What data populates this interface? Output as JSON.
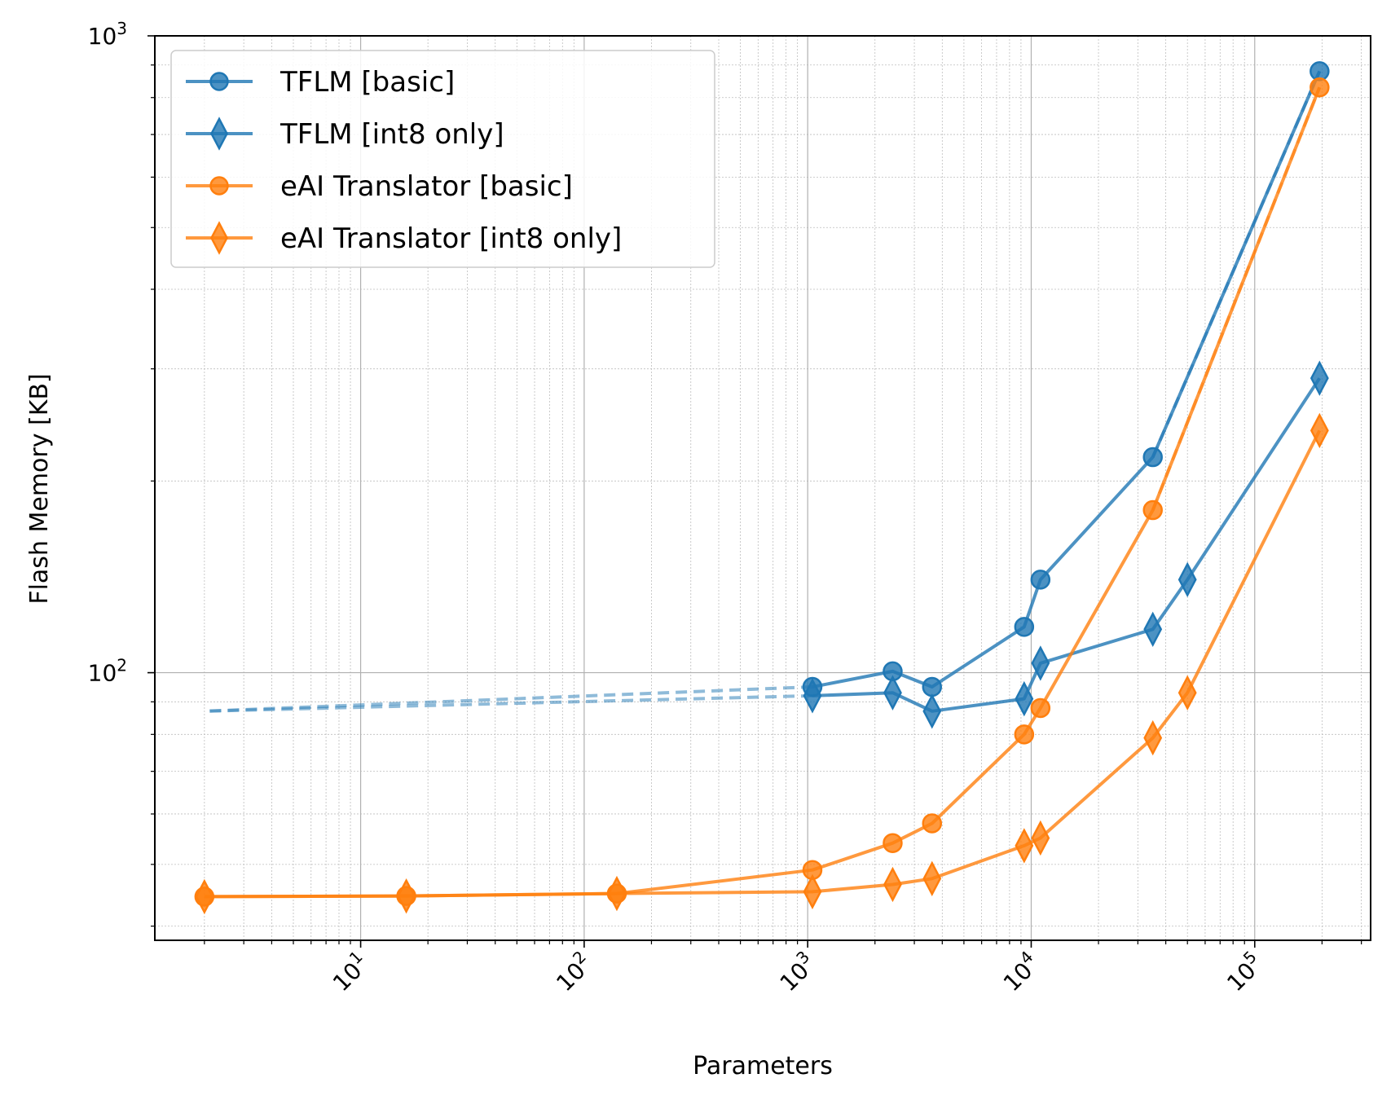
{
  "chart_data": {
    "type": "line",
    "xscale": "log",
    "yscale": "log",
    "xlabel": "Parameters",
    "ylabel": "Flash Memory [KB]",
    "xlim": [
      1.2,
      330000
    ],
    "ylim": [
      38,
      1000
    ],
    "xticks": [
      {
        "value": 10,
        "base": "10",
        "exp": "1"
      },
      {
        "value": 100,
        "base": "10",
        "exp": "2"
      },
      {
        "value": 1000,
        "base": "10",
        "exp": "3"
      },
      {
        "value": 10000,
        "base": "10",
        "exp": "4"
      },
      {
        "value": 100000,
        "base": "10",
        "exp": "5"
      }
    ],
    "yticks": [
      {
        "value": 100,
        "base": "10",
        "exp": "2"
      },
      {
        "value": 1000,
        "base": "10",
        "exp": "3"
      }
    ],
    "grid": true,
    "legend_position": "top-left",
    "series": [
      {
        "name": "TFLM [basic]",
        "color": "#1f77b4",
        "marker": "circle",
        "points": [
          [
            1050,
            95
          ],
          [
            2400,
            100.5
          ],
          [
            3600,
            95
          ],
          [
            9300,
            118
          ],
          [
            11000,
            140
          ],
          [
            35000,
            218
          ],
          [
            195000,
            880
          ]
        ],
        "dashed": [
          [
            [
              1050,
              95
            ],
            [
              2,
              87
            ]
          ],
          [
            [
              35000,
              218
            ],
            [
              195000,
              880
            ]
          ]
        ]
      },
      {
        "name": "TFLM [int8 only]",
        "color": "#1f77b4",
        "marker": "diamond",
        "points": [
          [
            1050,
            92
          ],
          [
            2400,
            93
          ],
          [
            3600,
            87
          ],
          [
            9300,
            91
          ],
          [
            11000,
            103.5
          ],
          [
            35000,
            117
          ],
          [
            50000,
            140
          ],
          [
            195000,
            290
          ]
        ],
        "dashed": [
          [
            [
              1050,
              92
            ],
            [
              2,
              87
            ]
          ]
        ]
      },
      {
        "name": "eAI Translator [basic]",
        "color": "#ff7f0e",
        "marker": "circle",
        "points": [
          [
            2,
            44.5
          ],
          [
            16,
            44.6
          ],
          [
            140,
            45
          ],
          [
            1050,
            49
          ],
          [
            2400,
            54
          ],
          [
            3600,
            58
          ],
          [
            9300,
            80
          ],
          [
            11000,
            88
          ],
          [
            35000,
            180
          ],
          [
            195000,
            830
          ]
        ],
        "dashed": [
          [
            [
              35000,
              180
            ],
            [
              195000,
              830
            ]
          ]
        ]
      },
      {
        "name": "eAI Translator [int8 only]",
        "color": "#ff7f0e",
        "marker": "diamond",
        "points": [
          [
            2,
            44.5
          ],
          [
            16,
            44.6
          ],
          [
            140,
            45
          ],
          [
            1050,
            45.3
          ],
          [
            2400,
            46.5
          ],
          [
            3600,
            47.5
          ],
          [
            9300,
            53.5
          ],
          [
            11000,
            55
          ],
          [
            35000,
            79
          ],
          [
            50000,
            93
          ],
          [
            195000,
            240
          ]
        ],
        "dashed": []
      }
    ]
  }
}
